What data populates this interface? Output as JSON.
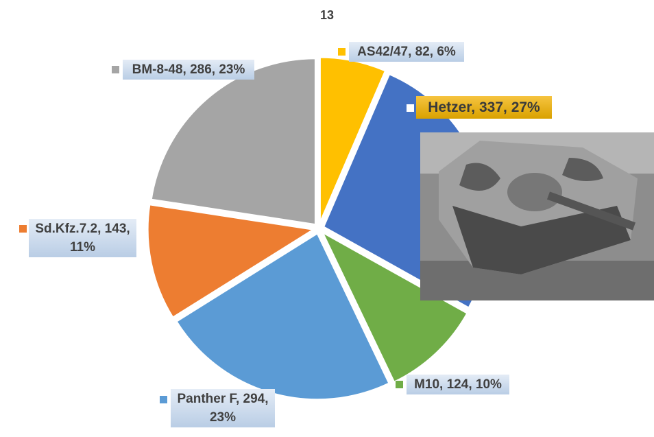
{
  "chart_data": {
    "type": "pie",
    "title": "13",
    "categories": [
      "AS42/47",
      "Hetzer",
      "M10",
      "Panther F",
      "Sd.Kfz.7.2",
      "BM-8-48"
    ],
    "values": [
      82,
      337,
      124,
      294,
      143,
      286
    ],
    "value_labels": [
      "AS42/47, 82, 6%",
      "Hetzer, 337, 27%",
      "M10, 124, 10%",
      "Panther F, 294, 23%",
      "Sd.Kfz.7.2, 143, 11%",
      "BM-8-48, 286, 23%"
    ],
    "colors": [
      "#ffc000",
      "#4472c4",
      "#70ad47",
      "#5b9bd5",
      "#ed7d31",
      "#a5a5a5"
    ]
  }
}
